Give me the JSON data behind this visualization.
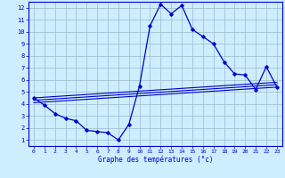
{
  "xlabel": "Graphe des températures (°c)",
  "background_color": "#cceeff",
  "line_color": "#0000cc",
  "grid_color": "#99bbcc",
  "xlim": [
    -0.5,
    23.5
  ],
  "ylim": [
    0.5,
    12.5
  ],
  "yticks": [
    1,
    2,
    3,
    4,
    5,
    6,
    7,
    8,
    9,
    10,
    11,
    12
  ],
  "xticks": [
    0,
    1,
    2,
    3,
    4,
    5,
    6,
    7,
    8,
    9,
    10,
    11,
    12,
    13,
    14,
    15,
    16,
    17,
    18,
    19,
    20,
    21,
    22,
    23
  ],
  "main_x": [
    0,
    1,
    2,
    3,
    4,
    5,
    6,
    7,
    8,
    9,
    10,
    11,
    12,
    13,
    14,
    15,
    16,
    17,
    18,
    19,
    20,
    21,
    22,
    23
  ],
  "main_y": [
    4.5,
    3.9,
    3.2,
    2.8,
    2.6,
    1.8,
    1.7,
    1.6,
    1.0,
    2.3,
    5.5,
    10.5,
    12.3,
    11.5,
    12.2,
    10.2,
    9.6,
    9.0,
    7.5,
    6.5,
    6.4,
    5.2,
    7.1,
    5.4
  ],
  "ref_lines": [
    {
      "x": [
        0,
        23
      ],
      "y": [
        4.5,
        5.8
      ]
    },
    {
      "x": [
        0,
        23
      ],
      "y": [
        4.3,
        5.6
      ]
    },
    {
      "x": [
        0,
        23
      ],
      "y": [
        4.1,
        5.4
      ]
    }
  ]
}
